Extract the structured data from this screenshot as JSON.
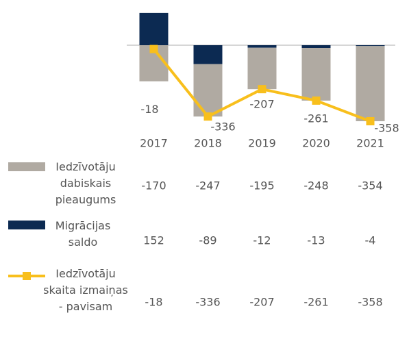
{
  "chart_data": {
    "type": "bar",
    "categories": [
      "2017",
      "2018",
      "2019",
      "2020",
      "2021"
    ],
    "ylim": [
      -400,
      160
    ],
    "series": [
      {
        "name": "Iedzīvotāju dabiskais pieaugums",
        "type": "bar",
        "color": "#b0aaa2",
        "values": [
          -170,
          -247,
          -195,
          -248,
          -354
        ]
      },
      {
        "name": "Migrācijas saldo",
        "type": "bar",
        "color": "#0c2a52",
        "values": [
          152,
          -89,
          -12,
          -13,
          -4
        ]
      },
      {
        "name": "Iedzīvotāju skaita izmaiņas - pavisam",
        "type": "line",
        "color": "#f8bf1c",
        "values": [
          -18,
          -336,
          -207,
          -261,
          -358
        ]
      }
    ]
  }
}
